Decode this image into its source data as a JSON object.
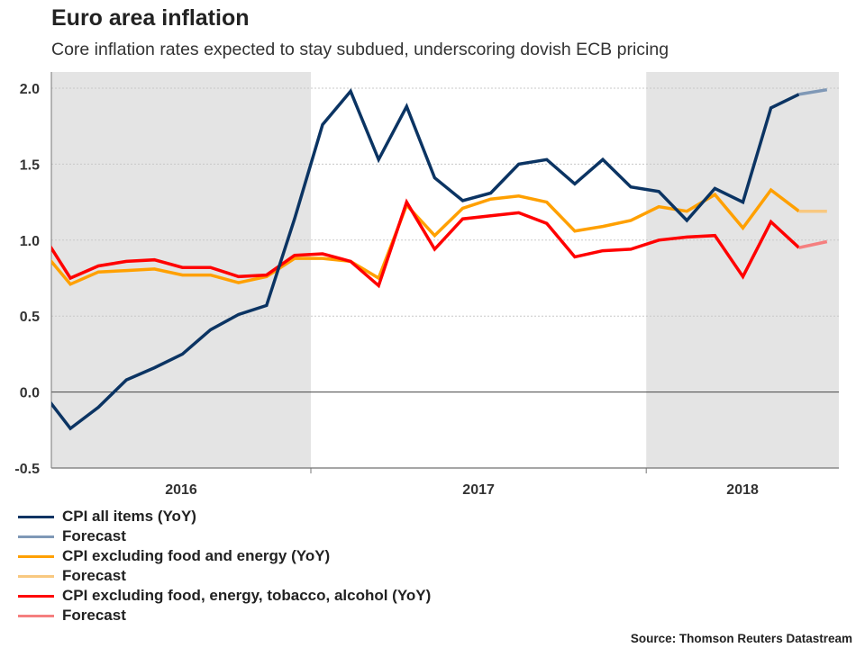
{
  "title": "Euro area inflation",
  "subtitle": "Core inflation rates expected to stay subdued, underscoring dovish ECB pricing",
  "source": "Source: Thomson Reuters Datastream",
  "chart_data": {
    "type": "line",
    "x": [
      "2016-03",
      "2016-04",
      "2016-05",
      "2016-06",
      "2016-07",
      "2016-08",
      "2016-09",
      "2016-10",
      "2016-11",
      "2016-12",
      "2017-01",
      "2017-02",
      "2017-03",
      "2017-04",
      "2017-05",
      "2017-06",
      "2017-07",
      "2017-08",
      "2017-09",
      "2017-10",
      "2017-11",
      "2017-12",
      "2018-01",
      "2018-02",
      "2018-03",
      "2018-04",
      "2018-05",
      "2018-06",
      "2018-07"
    ],
    "x_tick_labels": [
      "2016",
      "2017",
      "2018"
    ],
    "shaded_years": [
      "2016",
      "2018"
    ],
    "ylim": [
      -0.5,
      2.0
    ],
    "y_ticks": [
      "2.0",
      "1.5",
      "1.0",
      "0.5",
      "0.0",
      "-0.5"
    ],
    "grid": "horizontal dotted",
    "legend_position": "bottom",
    "series": [
      {
        "name": "CPI all items (YoY)",
        "color": "#0b3463",
        "values": [
          0.0,
          -0.24,
          -0.1,
          0.08,
          0.16,
          0.25,
          0.41,
          0.51,
          0.57,
          1.14,
          1.76,
          1.98,
          1.53,
          1.88,
          1.41,
          1.26,
          1.31,
          1.5,
          1.53,
          1.37,
          1.53,
          1.35,
          1.32,
          1.13,
          1.34,
          1.25,
          1.87,
          1.96,
          null
        ]
      },
      {
        "name": "Forecast",
        "color": "#7f98b6",
        "values": [
          null,
          null,
          null,
          null,
          null,
          null,
          null,
          null,
          null,
          null,
          null,
          null,
          null,
          null,
          null,
          null,
          null,
          null,
          null,
          null,
          null,
          null,
          null,
          null,
          null,
          null,
          null,
          1.96,
          1.99
        ]
      },
      {
        "name": "CPI excluding food and energy (YoY)",
        "color": "#ffa000",
        "values": [
          0.93,
          0.71,
          0.79,
          0.8,
          0.81,
          0.77,
          0.77,
          0.72,
          0.76,
          0.88,
          0.88,
          0.86,
          0.75,
          1.23,
          1.03,
          1.21,
          1.27,
          1.29,
          1.25,
          1.06,
          1.09,
          1.13,
          1.22,
          1.19,
          1.3,
          1.08,
          1.33,
          1.19,
          null
        ]
      },
      {
        "name": "Forecast",
        "color": "#f8c880",
        "values": [
          null,
          null,
          null,
          null,
          null,
          null,
          null,
          null,
          null,
          null,
          null,
          null,
          null,
          null,
          null,
          null,
          null,
          null,
          null,
          null,
          null,
          null,
          null,
          null,
          null,
          null,
          null,
          1.19,
          1.19
        ]
      },
      {
        "name": "CPI excluding food, energy, tobacco, alcohol (YoY)",
        "color": "#ff0000",
        "values": [
          1.04,
          0.75,
          0.83,
          0.86,
          0.87,
          0.82,
          0.82,
          0.76,
          0.77,
          0.9,
          0.91,
          0.86,
          0.7,
          1.25,
          0.94,
          1.14,
          1.16,
          1.18,
          1.11,
          0.89,
          0.93,
          0.94,
          1.0,
          1.02,
          1.03,
          0.76,
          1.12,
          0.95,
          null
        ]
      },
      {
        "name": "Forecast",
        "color": "#f57f7f",
        "values": [
          null,
          null,
          null,
          null,
          null,
          null,
          null,
          null,
          null,
          null,
          null,
          null,
          null,
          null,
          null,
          null,
          null,
          null,
          null,
          null,
          null,
          null,
          null,
          null,
          null,
          null,
          null,
          0.95,
          0.99
        ]
      }
    ]
  }
}
